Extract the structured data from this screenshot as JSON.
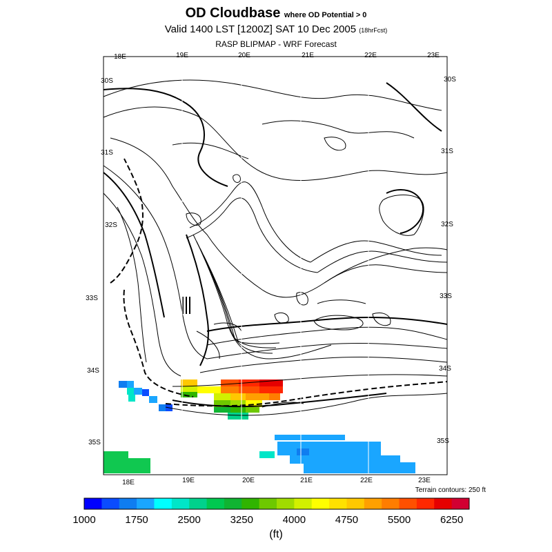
{
  "title": {
    "main": "OD Cloudbase",
    "main_suffix": "where OD Potential > 0",
    "valid": "Valid 1400 LST [1200Z] SAT 10 Dec 2005",
    "valid_suffix": "(18hrFcst)",
    "source": "RASP BLIPMAP - WRF Forecast"
  },
  "axes": {
    "top_lon": [
      "18E",
      "19E",
      "20E",
      "21E",
      "22E",
      "23E"
    ],
    "bottom_lon": [
      "18E",
      "19E",
      "20E",
      "21E",
      "22E",
      "23E"
    ],
    "left_lat": [
      "30S",
      "31S",
      "32S",
      "33S",
      "34S",
      "35S"
    ],
    "right_lat": [
      "30S",
      "31S",
      "32S",
      "33S",
      "34S",
      "35S"
    ]
  },
  "terrain_note": "Terrain contours: 250 ft",
  "colorbar": {
    "colors": [
      "#0000ff",
      "#0a4cff",
      "#0f7df0",
      "#1aa6ff",
      "#00ffff",
      "#00e6c8",
      "#00d28c",
      "#00c850",
      "#10b432",
      "#30b400",
      "#6ec800",
      "#a0dc00",
      "#d2f000",
      "#ffff00",
      "#ffe100",
      "#ffc800",
      "#ffa000",
      "#ff7d00",
      "#ff5000",
      "#ff2800",
      "#e60000",
      "#d20032"
    ],
    "labels": [
      "1000",
      "1750",
      "2500",
      "3250",
      "4000",
      "4750",
      "5500",
      "6250"
    ],
    "unit": "(ft)"
  },
  "colors": {
    "frame": "#000000",
    "contour": "#000000"
  }
}
